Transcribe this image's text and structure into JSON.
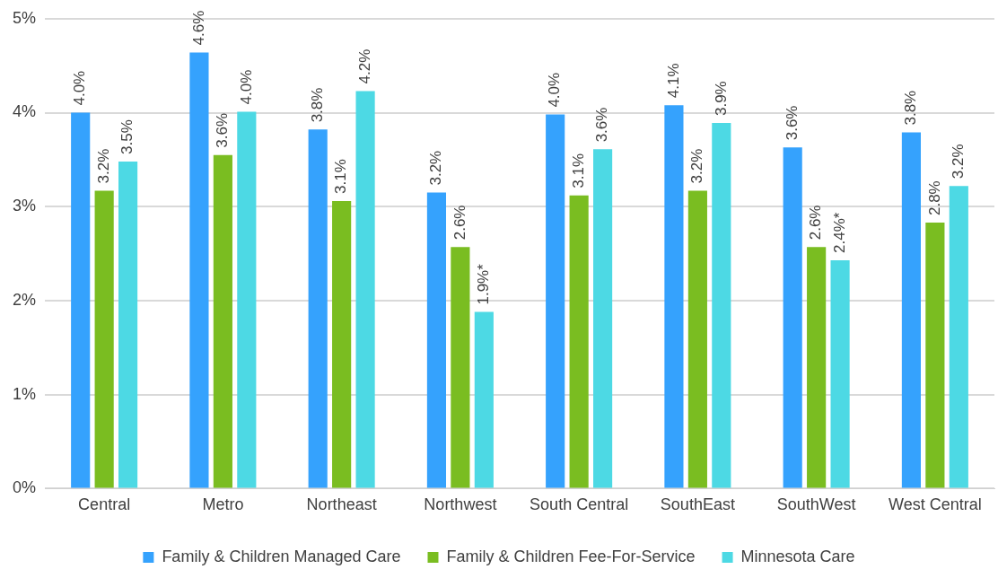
{
  "chart_data": {
    "type": "bar",
    "categories": [
      "Central",
      "Metro",
      "Northeast",
      "Northwest",
      "South Central",
      "SouthEast",
      "SouthWest",
      "West Central"
    ],
    "series": [
      {
        "name": "Family & Children Managed Care",
        "color": "#35a2fd",
        "values": [
          4.0,
          4.64,
          3.82,
          3.15,
          3.98,
          4.08,
          3.63,
          3.79
        ],
        "value_labels": [
          "4.0%",
          "4.6%",
          "3.8%",
          "3.2%",
          "4.0%",
          "4.1%",
          "3.6%",
          "3.8%"
        ]
      },
      {
        "name": "Family & Children Fee-For-Service",
        "color": "#7abd21",
        "values": [
          3.17,
          3.55,
          3.06,
          2.57,
          3.12,
          3.17,
          2.57,
          2.83
        ],
        "value_labels": [
          "3.2%",
          "3.6%",
          "3.1%",
          "2.6%",
          "3.1%",
          "3.2%",
          "2.6%",
          "2.8%"
        ]
      },
      {
        "name": "Minnesota Care",
        "color": "#4dd9e4",
        "values": [
          3.48,
          4.01,
          4.23,
          1.88,
          3.61,
          3.89,
          2.43,
          3.22
        ],
        "value_labels": [
          "3.5%",
          "4.0%",
          "4.2%",
          "1.9%*",
          "3.6%",
          "3.9%",
          "2.4%*",
          "3.2%"
        ]
      }
    ],
    "ylim": [
      0,
      5
    ],
    "yticks": [
      {
        "value": 0,
        "label": "0%"
      },
      {
        "value": 1,
        "label": "1%"
      },
      {
        "value": 2,
        "label": "2%"
      },
      {
        "value": 3,
        "label": "3%"
      },
      {
        "value": 4,
        "label": "4%"
      },
      {
        "value": 5,
        "label": "5%"
      }
    ],
    "grid": "y",
    "legend": "bottom"
  }
}
